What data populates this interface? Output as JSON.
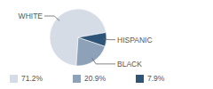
{
  "chart_data": {
    "type": "pie",
    "categories": [
      "WHITE",
      "BLACK",
      "HISPANIC"
    ],
    "values": [
      71.2,
      20.9,
      7.9
    ],
    "value_labels": [
      "71.2%",
      "20.9%",
      "7.9%"
    ],
    "colors": [
      "#d5dce6",
      "#8da2b8",
      "#2e5478"
    ]
  }
}
